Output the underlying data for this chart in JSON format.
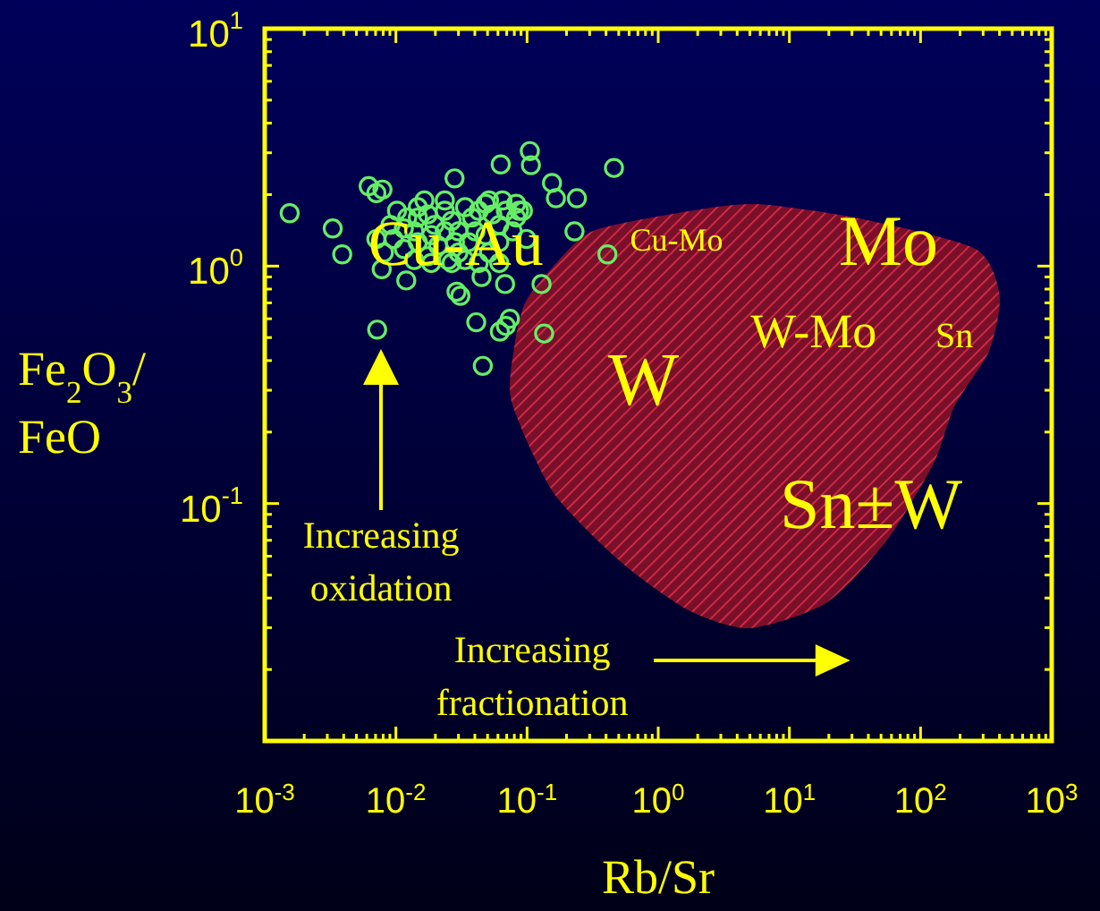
{
  "chart_data": {
    "type": "scatter",
    "xlabel": "Rb/Sr",
    "ylabel": "Fe$_{2}$O$_{3}$/\nFeO",
    "log": "xy",
    "grid": false,
    "marker": "circle",
    "xlim": [
      0.001,
      1000
    ],
    "ylim": [
      0.01,
      10
    ],
    "xticks": [
      {
        "value": 0.001,
        "label": "10$^{-3}$"
      },
      {
        "value": 0.01,
        "label": "10$^{-2}$"
      },
      {
        "value": 0.1,
        "label": "10$^{-1}$"
      },
      {
        "value": 1,
        "label": "10$^{0}$"
      },
      {
        "value": 10,
        "label": "10$^{1}$"
      },
      {
        "value": 100,
        "label": "10$^{2}$"
      },
      {
        "value": 1000,
        "label": "10$^{3}$"
      }
    ],
    "yticks": [
      {
        "value": 0.1,
        "label": "10$^{-1}$"
      },
      {
        "value": 1,
        "label": "10$^{0}$"
      },
      {
        "value": 10,
        "label": "10$^{1}$"
      }
    ],
    "annotations": [
      "Cu-Au",
      "Cu-Mo",
      "Mo",
      "W-Mo",
      "Sn",
      "W",
      "Sn±W",
      "Increasing\noxidation",
      "Increasing\nfractionation"
    ],
    "series": [
      {
        "color": "#66ee66",
        "x": [
          0.00155,
          0.0033,
          0.0039,
          0.0062,
          0.0071,
          0.0079,
          0.0071,
          0.0078,
          0.0072,
          0.012,
          0.028,
          0.063,
          0.105,
          0.107,
          0.155,
          0.166,
          0.24,
          0.46,
          0.23,
          0.41,
          0.129,
          0.135,
          0.069,
          0.074,
          0.062,
          0.041,
          0.046,
          0.029,
          0.031,
          0.068,
          0.045,
          0.087,
          0.0102,
          0.0122,
          0.0147,
          0.0175,
          0.0197,
          0.0236,
          0.0266,
          0.03,
          0.0337,
          0.038,
          0.0428,
          0.0483,
          0.0544,
          0.0614,
          0.069,
          0.0826,
          0.093,
          0.0096,
          0.0115,
          0.0147,
          0.0175,
          0.021,
          0.025,
          0.03,
          0.0358,
          0.0428,
          0.0513,
          0.0614,
          0.0138,
          0.0186,
          0.0282,
          0.0483,
          0.0778,
          0.0115,
          0.0165,
          0.0236,
          0.0513,
          0.0186,
          0.0266,
          0.0081,
          0.0091,
          0.0138,
          0.0236,
          0.0404,
          0.0614,
          0.099,
          0.0147,
          0.0337,
          0.065,
          0.0826
        ],
        "values": [
          1.67,
          1.44,
          1.12,
          2.17,
          2.03,
          2.1,
          1.3,
          0.97,
          0.54,
          0.87,
          2.34,
          2.68,
          3.05,
          2.66,
          2.24,
          1.93,
          1.93,
          2.59,
          1.4,
          1.12,
          0.84,
          0.52,
          0.56,
          0.6,
          0.53,
          0.58,
          0.38,
          0.78,
          0.75,
          0.84,
          0.9,
          1.71,
          1.71,
          1.6,
          1.77,
          1.65,
          1.49,
          1.71,
          1.55,
          1.4,
          1.77,
          1.6,
          1.71,
          1.83,
          1.65,
          1.49,
          1.71,
          1.6,
          1.71,
          1.3,
          1.18,
          1.26,
          1.1,
          1.22,
          1.06,
          1.14,
          1.26,
          1.03,
          1.14,
          1.03,
          1.4,
          1.35,
          1.26,
          1.35,
          1.4,
          1.44,
          1.89,
          1.89,
          1.89,
          1.03,
          1.03,
          1.14,
          1.49,
          1.06,
          1.4,
          1.4,
          1.26,
          1.3,
          1.6,
          1.06,
          1.89,
          1.83
        ]
      }
    ]
  }
}
